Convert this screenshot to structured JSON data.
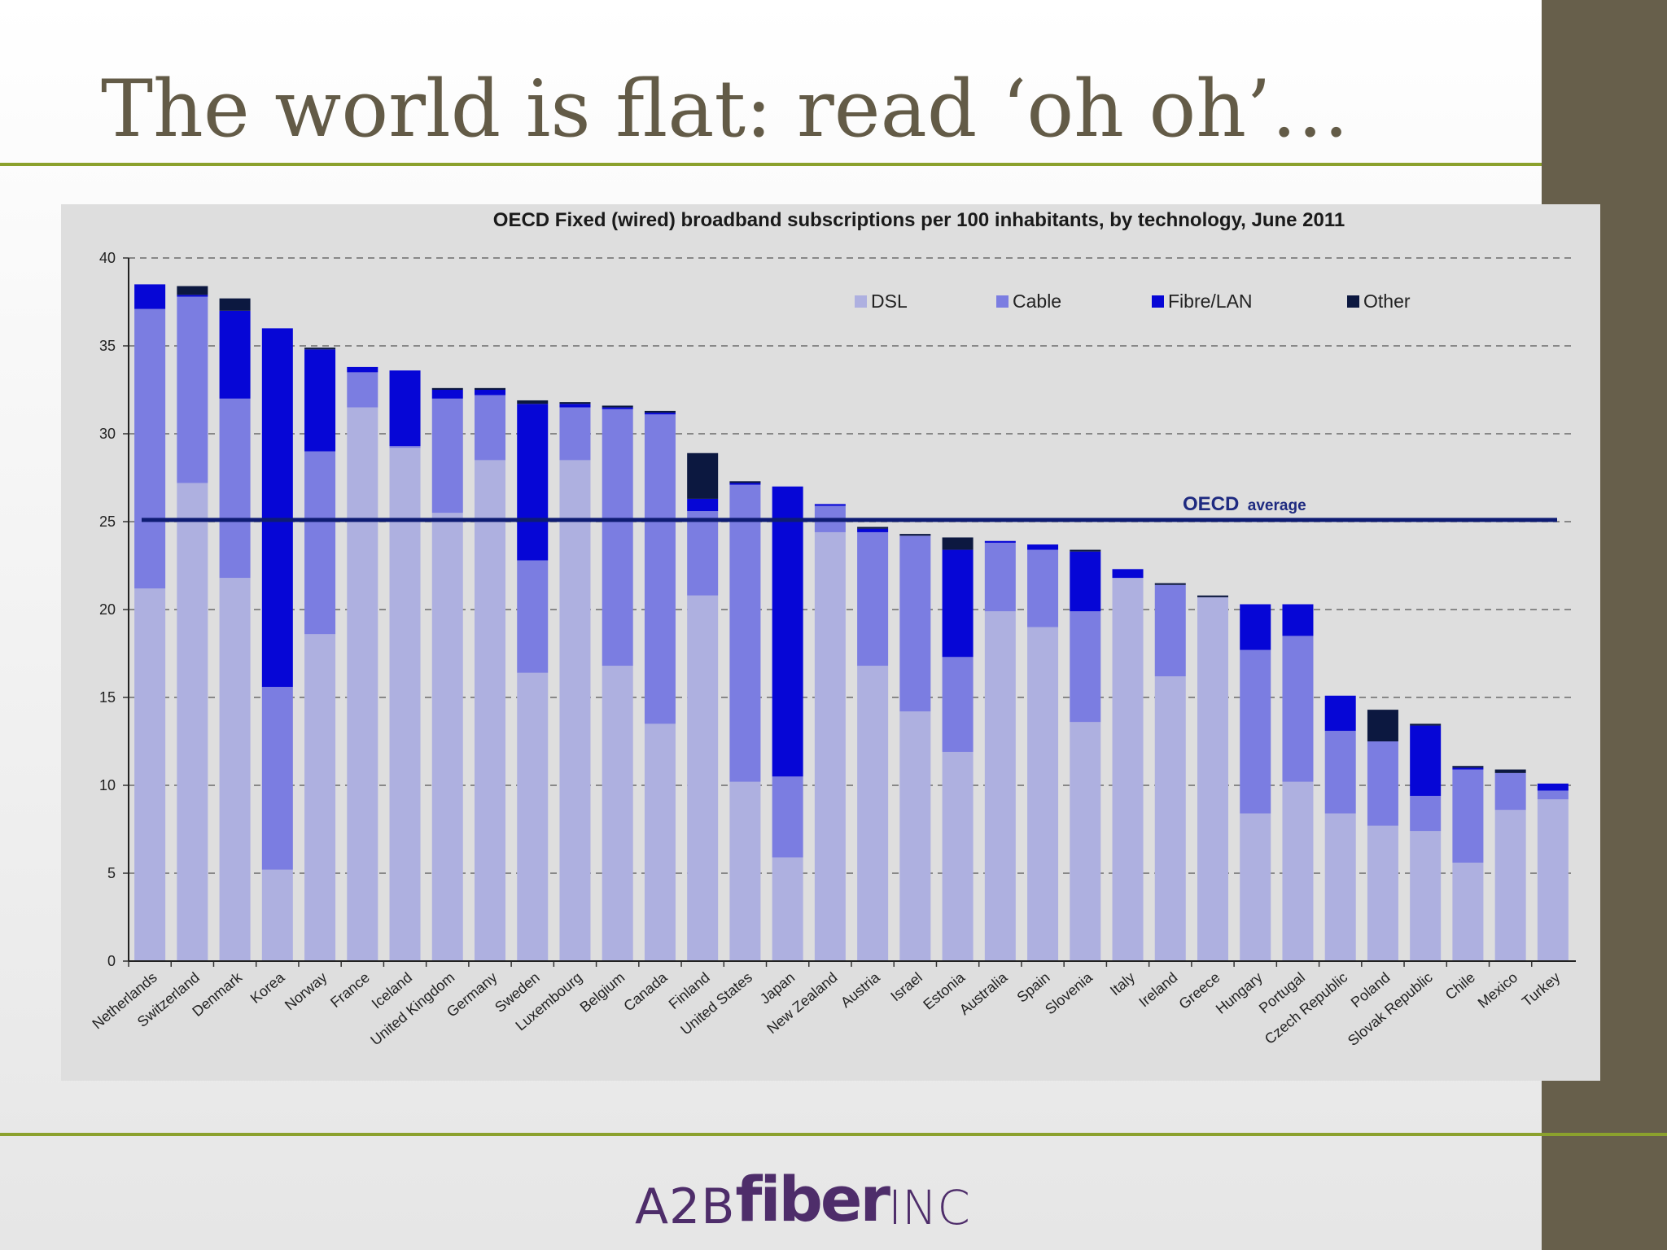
{
  "slide": {
    "title": "The world is flat: read ‘oh oh’…",
    "logo": {
      "part1": "A2B",
      "part2": "fiber",
      "part3": "INC"
    }
  },
  "colors": {
    "title": "#635b47",
    "accent_rule": "#8ba12d",
    "side_band": "#675f4b",
    "dsl": "#aeb0e0",
    "cable": "#7b7de1",
    "fibre": "#0606d6",
    "other": "#0c1840",
    "average_line": "#0e1c73"
  },
  "chart_data": {
    "type": "bar",
    "stacked": true,
    "title": "OECD Fixed (wired) broadband subscriptions per 100 inhabitants, by technology, June 2011",
    "xlabel": "",
    "ylabel": "",
    "ylim": [
      0,
      40
    ],
    "yticks": [
      0,
      5,
      10,
      15,
      20,
      25,
      30,
      35,
      40
    ],
    "grid": "dashed horizontal",
    "legend_position": "top-right",
    "categories": [
      "Netherlands",
      "Switzerland",
      "Denmark",
      "Korea",
      "Norway",
      "France",
      "Iceland",
      "United Kingdom",
      "Germany",
      "Sweden",
      "Luxembourg",
      "Belgium",
      "Canada",
      "Finland",
      "United States",
      "Japan",
      "New Zealand",
      "Austria",
      "Israel",
      "Estonia",
      "Australia",
      "Spain",
      "Slovenia",
      "Italy",
      "Ireland",
      "Greece",
      "Hungary",
      "Portugal",
      "Czech Republic",
      "Poland",
      "Slovak Republic",
      "Chile",
      "Mexico",
      "Turkey"
    ],
    "series": [
      {
        "name": "DSL",
        "color": "#aeb0e0",
        "values": [
          21.2,
          27.2,
          21.8,
          5.2,
          18.6,
          31.5,
          29.2,
          25.5,
          28.5,
          16.4,
          28.5,
          16.8,
          13.5,
          20.8,
          10.2,
          5.9,
          24.4,
          16.8,
          14.2,
          11.9,
          19.9,
          19.0,
          13.6,
          21.8,
          16.2,
          20.7,
          8.4,
          10.2,
          8.4,
          7.7,
          7.4,
          5.6,
          8.6,
          9.2
        ]
      },
      {
        "name": "Cable",
        "color": "#7b7de1",
        "values": [
          15.9,
          10.6,
          10.2,
          10.4,
          10.4,
          2.0,
          0.1,
          6.5,
          3.7,
          6.4,
          3.0,
          14.6,
          17.6,
          4.8,
          16.9,
          4.6,
          1.5,
          7.6,
          10.0,
          5.4,
          3.9,
          4.4,
          6.3,
          0.0,
          5.2,
          0.0,
          9.3,
          8.3,
          4.7,
          4.8,
          2.0,
          5.3,
          2.1,
          0.5
        ]
      },
      {
        "name": "Fibre/LAN",
        "color": "#0606d6",
        "values": [
          1.4,
          0.1,
          5.0,
          20.4,
          5.8,
          0.3,
          4.3,
          0.5,
          0.3,
          8.9,
          0.2,
          0.1,
          0.1,
          0.7,
          0.1,
          16.5,
          0.1,
          0.2,
          0.0,
          6.1,
          0.1,
          0.3,
          3.4,
          0.5,
          0.0,
          0.0,
          2.6,
          1.8,
          2.0,
          0.0,
          4.0,
          0.1,
          0.0,
          0.4
        ]
      },
      {
        "name": "Other",
        "color": "#0c1840",
        "values": [
          0.0,
          0.5,
          0.7,
          0.0,
          0.1,
          0.0,
          0.0,
          0.1,
          0.1,
          0.2,
          0.1,
          0.1,
          0.1,
          2.6,
          0.1,
          0.0,
          0.0,
          0.1,
          0.1,
          0.7,
          0.0,
          0.0,
          0.1,
          0.0,
          0.1,
          0.1,
          0.0,
          0.0,
          0.0,
          1.8,
          0.1,
          0.1,
          0.2,
          0.0
        ]
      }
    ],
    "average": {
      "label_main": "OECD",
      "label_sub": "average",
      "value": 25.1
    }
  }
}
